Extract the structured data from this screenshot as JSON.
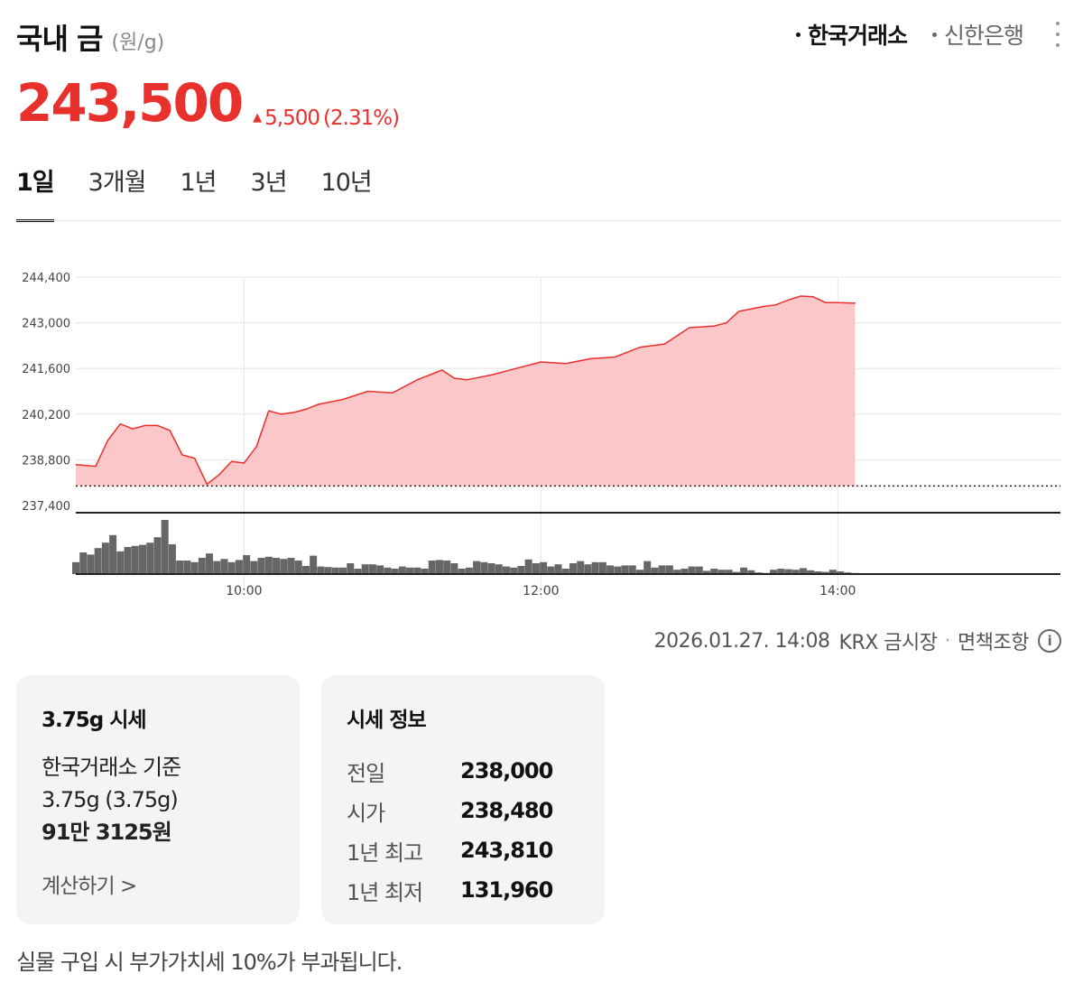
{
  "header": {
    "title": "국내 금",
    "unit": "(원/g)",
    "sources": [
      {
        "label": "한국거래소",
        "active": true
      },
      {
        "label": "신한은행",
        "active": false
      }
    ]
  },
  "price": {
    "value": "243,500",
    "change": "5,500",
    "change_pct": "(2.31%)",
    "direction": "up",
    "color": "#e8302d"
  },
  "period_tabs": [
    "1일",
    "3개월",
    "1년",
    "3년",
    "10년"
  ],
  "active_period": "1일",
  "chart_data": {
    "type": "area",
    "y_tick_labels": [
      "244,400",
      "243,000",
      "241,600",
      "240,200",
      "238,800",
      "237,400"
    ],
    "ylim": [
      237400,
      244400
    ],
    "x_tick_labels": [
      "10:00",
      "12:00",
      "14:00"
    ],
    "x_range": [
      "08:52",
      "15:30"
    ],
    "previous_close": 238000,
    "line_color": "#e8302d",
    "fill_color": "#fbc7c8",
    "price_series": {
      "x": [
        "08:52",
        "09:00",
        "09:05",
        "09:10",
        "09:15",
        "09:20",
        "09:25",
        "09:30",
        "09:35",
        "09:40",
        "09:45",
        "09:50",
        "09:55",
        "10:00",
        "10:05",
        "10:10",
        "10:15",
        "10:20",
        "10:25",
        "10:30",
        "10:40",
        "10:50",
        "11:00",
        "11:10",
        "11:20",
        "11:25",
        "11:30",
        "11:40",
        "11:50",
        "12:00",
        "12:10",
        "12:20",
        "12:30",
        "12:40",
        "12:50",
        "13:00",
        "13:10",
        "13:15",
        "13:20",
        "13:30",
        "13:35",
        "13:40",
        "13:45",
        "13:50",
        "13:55",
        "14:00",
        "14:07"
      ],
      "values": [
        238650,
        238600,
        239400,
        239900,
        239750,
        239850,
        239850,
        239700,
        238950,
        238850,
        238050,
        238350,
        238750,
        238700,
        239200,
        240300,
        240200,
        240250,
        240350,
        240500,
        240650,
        240900,
        240850,
        241250,
        241550,
        241300,
        241250,
        241400,
        241600,
        241800,
        241750,
        241900,
        241950,
        242250,
        242350,
        242850,
        242900,
        243000,
        243350,
        243500,
        243550,
        243700,
        243820,
        243800,
        243620,
        243620,
        243600
      ]
    },
    "volume_series": {
      "x": [
        "08:52",
        "08:55",
        "08:58",
        "09:01",
        "09:04",
        "09:07",
        "09:10",
        "09:13",
        "09:16",
        "09:19",
        "09:22",
        "09:25",
        "09:28",
        "09:31",
        "09:34",
        "09:37",
        "09:40",
        "09:43",
        "09:46",
        "09:49",
        "09:52",
        "09:55",
        "09:58",
        "10:01",
        "10:04",
        "10:07",
        "10:10",
        "10:13",
        "10:16",
        "10:19",
        "10:22",
        "10:25",
        "10:28",
        "10:31",
        "10:34",
        "10:37",
        "10:40",
        "10:43",
        "10:46",
        "10:49",
        "10:52",
        "10:55",
        "10:58",
        "11:01",
        "11:04",
        "11:07",
        "11:10",
        "11:13",
        "11:16",
        "11:19",
        "11:22",
        "11:25",
        "11:28",
        "11:31",
        "11:34",
        "11:37",
        "11:40",
        "11:43",
        "11:46",
        "11:49",
        "11:52",
        "11:55",
        "11:58",
        "12:01",
        "12:04",
        "12:07",
        "12:10",
        "12:13",
        "12:16",
        "12:19",
        "12:22",
        "12:25",
        "12:28",
        "12:31",
        "12:34",
        "12:37",
        "12:40",
        "12:43",
        "12:46",
        "12:49",
        "12:52",
        "12:55",
        "12:58",
        "13:01",
        "13:04",
        "13:07",
        "13:10",
        "13:13",
        "13:16",
        "13:19",
        "13:22",
        "13:25",
        "13:28",
        "13:31",
        "13:34",
        "13:37",
        "13:40",
        "13:43",
        "13:46",
        "13:49",
        "13:52",
        "13:55",
        "13:58",
        "14:01",
        "14:04",
        "14:07"
      ],
      "values": [
        0.22,
        0.4,
        0.36,
        0.48,
        0.58,
        0.72,
        0.42,
        0.5,
        0.52,
        0.54,
        0.58,
        0.68,
        1.0,
        0.55,
        0.25,
        0.25,
        0.22,
        0.3,
        0.38,
        0.24,
        0.28,
        0.22,
        0.26,
        0.35,
        0.24,
        0.3,
        0.32,
        0.3,
        0.28,
        0.3,
        0.25,
        0.15,
        0.34,
        0.14,
        0.13,
        0.12,
        0.12,
        0.2,
        0.1,
        0.18,
        0.18,
        0.16,
        0.12,
        0.1,
        0.14,
        0.12,
        0.12,
        0.1,
        0.25,
        0.26,
        0.25,
        0.2,
        0.1,
        0.12,
        0.24,
        0.22,
        0.2,
        0.18,
        0.14,
        0.12,
        0.15,
        0.27,
        0.2,
        0.22,
        0.14,
        0.18,
        0.1,
        0.2,
        0.24,
        0.18,
        0.22,
        0.22,
        0.16,
        0.14,
        0.16,
        0.16,
        0.08,
        0.24,
        0.12,
        0.16,
        0.16,
        0.08,
        0.1,
        0.14,
        0.14,
        0.06,
        0.1,
        0.08,
        0.08,
        0.04,
        0.12,
        0.07,
        0.03,
        0.02,
        0.08,
        0.1,
        0.09,
        0.08,
        0.11,
        0.07,
        0.05,
        0.04,
        0.08,
        0.05,
        0.03,
        0.02
      ],
      "color": "#666666"
    }
  },
  "timestamp": {
    "datetime": "2026.01.27. 14:08",
    "market": "KRX 금시장",
    "separator": "·",
    "disclaimer": "면책조항",
    "info_icon_glyph": "i"
  },
  "card_quote": {
    "title": "3.75g 시세",
    "basis": "한국거래소 기준",
    "weight": "3.75g (3.75g)",
    "amount": "91만 3125원",
    "link": "계산하기 >"
  },
  "card_info": {
    "title": "시세 정보",
    "rows": [
      {
        "label": "전일",
        "value": "238,000"
      },
      {
        "label": "시가",
        "value": "238,480"
      },
      {
        "label": "1년 최고",
        "value": "243,810"
      },
      {
        "label": "1년 최저",
        "value": "131,960"
      }
    ]
  },
  "footnote": "실물 구입 시 부가가치세 10%가 부과됩니다."
}
